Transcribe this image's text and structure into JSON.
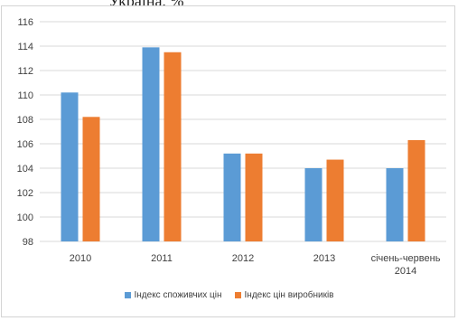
{
  "header_fragment": "Україна, %",
  "colors": {
    "consumer": "#5b9bd5",
    "producer": "#ed7d31",
    "grid": "#d9d9d9",
    "frame": "#d4d4d4"
  },
  "chart_data": {
    "type": "bar",
    "title": "",
    "xlabel": "",
    "ylabel": "",
    "categories": [
      [
        "2010"
      ],
      [
        "2011"
      ],
      [
        "2012"
      ],
      [
        "2013"
      ],
      [
        "січень-червень",
        "2014"
      ]
    ],
    "series": [
      {
        "name": "Індекс споживчих цін",
        "values": [
          110.2,
          113.9,
          105.2,
          104.0,
          104.0
        ]
      },
      {
        "name": "Індекс цін виробників",
        "values": [
          108.2,
          113.5,
          105.2,
          104.7,
          106.3
        ]
      }
    ],
    "ylim": [
      98,
      116
    ],
    "yticks": [
      98,
      100,
      102,
      104,
      106,
      108,
      110,
      112,
      114,
      116
    ],
    "grid": true,
    "legend_position": "bottom"
  }
}
